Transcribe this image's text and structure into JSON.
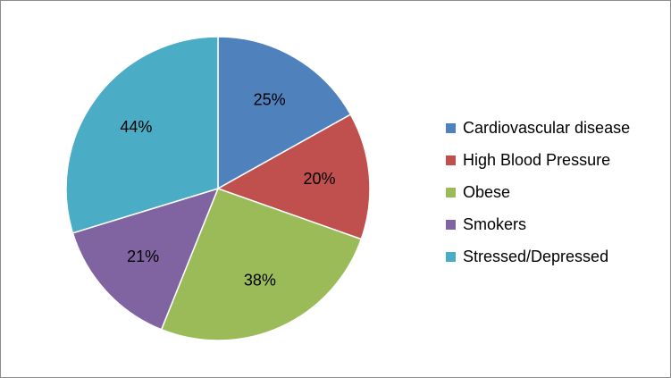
{
  "chart_data": {
    "type": "pie",
    "title": "",
    "categories": [
      "Cardiovascular disease",
      "High Blood Pressure",
      "Obese",
      "Smokers",
      "Stressed/Depressed"
    ],
    "values": [
      25,
      20,
      38,
      21,
      44
    ],
    "data_labels": [
      "25%",
      "20%",
      "38%",
      "21%",
      "44%"
    ],
    "colors": [
      "#4F81BD",
      "#C0504D",
      "#9BBB59",
      "#8064A2",
      "#4BACC6"
    ],
    "start_angle_deg": 0,
    "direction": "clockwise",
    "legend_position": "right"
  }
}
